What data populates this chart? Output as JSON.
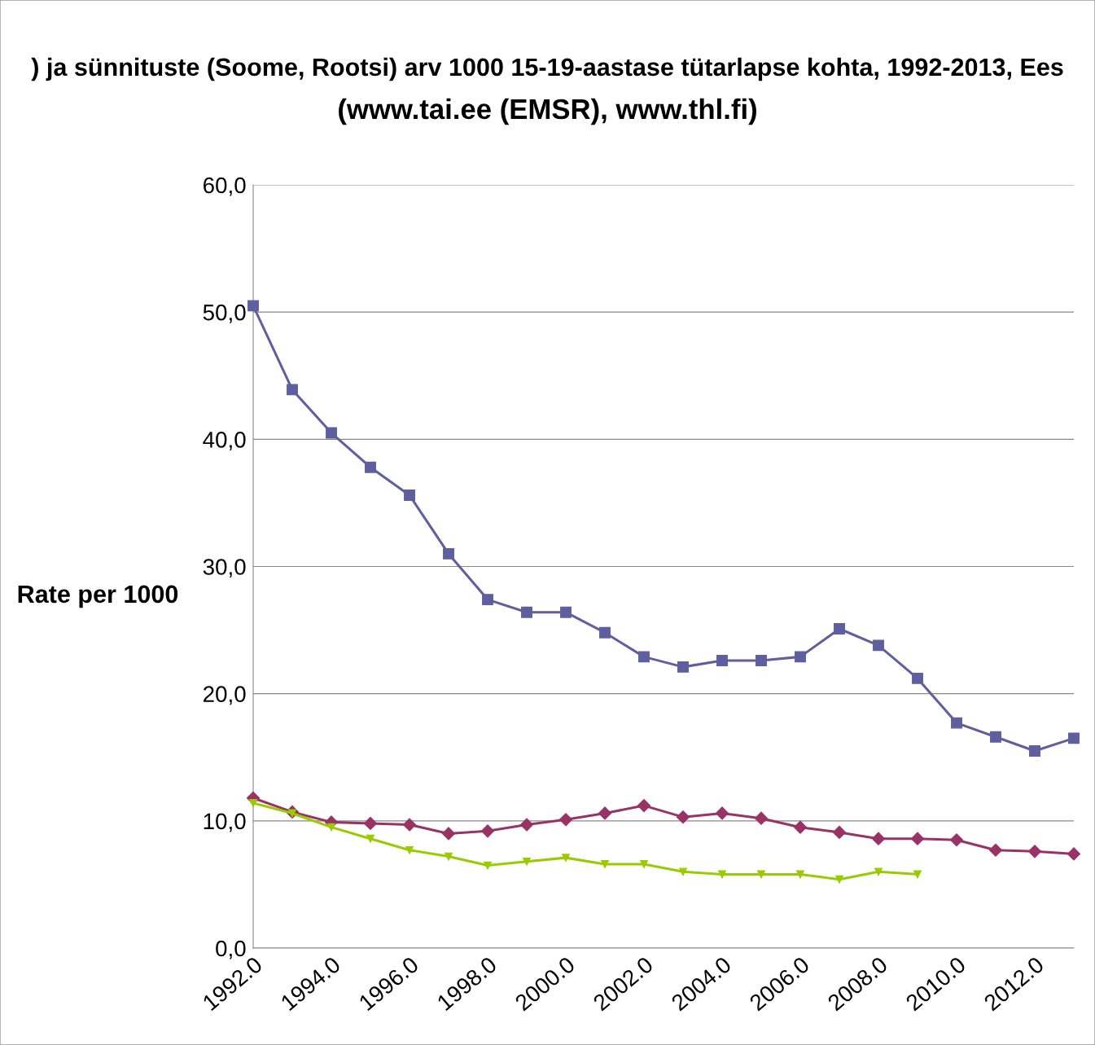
{
  "chart_data": {
    "type": "line",
    "title": ") ja sünnituste (Soome, Rootsi) arv 1000 15-19-aastase tütarlapse kohta, 1992-2013, Ees",
    "subtitle": "(www.tai.ee (EMSR), www.thl.fi)",
    "ylabel": "Rate per 1000",
    "x": [
      1992,
      1993,
      1994,
      1995,
      1996,
      1997,
      1998,
      1999,
      2000,
      2001,
      2002,
      2003,
      2004,
      2005,
      2006,
      2007,
      2008,
      2009,
      2010,
      2011,
      2012,
      2013
    ],
    "series": [
      {
        "color": "#5f5f9f",
        "marker": "square",
        "values": [
          50.5,
          43.9,
          40.5,
          37.8,
          35.6,
          31.0,
          27.4,
          26.4,
          26.4,
          24.8,
          22.9,
          22.1,
          22.6,
          22.6,
          22.9,
          25.1,
          23.8,
          21.2,
          17.7,
          16.6,
          15.5,
          16.5
        ]
      },
      {
        "color": "#993366",
        "marker": "diamond",
        "values": [
          11.8,
          10.7,
          9.9,
          9.8,
          9.7,
          9.0,
          9.2,
          9.7,
          10.1,
          10.6,
          11.2,
          10.3,
          10.6,
          10.2,
          9.5,
          9.1,
          8.6,
          8.6,
          8.5,
          7.7,
          7.6,
          7.4
        ]
      },
      {
        "color": "#99cc00",
        "marker": "triangle",
        "values": [
          11.4,
          10.6,
          9.5,
          8.6,
          7.7,
          7.2,
          6.5,
          6.8,
          7.1,
          6.6,
          6.6,
          6.0,
          5.8,
          5.8,
          5.8,
          5.4,
          6.0,
          5.8,
          null,
          null,
          null,
          null
        ]
      }
    ],
    "xlim": [
      1992,
      2013
    ],
    "xticks": [
      {
        "value": 1992,
        "label": "1992.0"
      },
      {
        "value": 1994,
        "label": "1994.0"
      },
      {
        "value": 1996,
        "label": "1996.0"
      },
      {
        "value": 1998,
        "label": "1998.0"
      },
      {
        "value": 2000,
        "label": "2000.0"
      },
      {
        "value": 2002,
        "label": "2002.0"
      },
      {
        "value": 2004,
        "label": "2004.0"
      },
      {
        "value": 2006,
        "label": "2006.0"
      },
      {
        "value": 2008,
        "label": "2008.0"
      },
      {
        "value": 2010,
        "label": "2010.0"
      },
      {
        "value": 2012,
        "label": "2012.0"
      }
    ],
    "ylim": [
      0,
      60
    ],
    "yticks": [
      {
        "value": 0,
        "label": "0,0"
      },
      {
        "value": 10,
        "label": "10,0"
      },
      {
        "value": 20,
        "label": "20,0"
      },
      {
        "value": 30,
        "label": "30,0"
      },
      {
        "value": 40,
        "label": "40,0"
      },
      {
        "value": 50,
        "label": "50,0"
      },
      {
        "value": 60,
        "label": "60,0"
      }
    ],
    "grid": "y",
    "line_style": "solid"
  }
}
